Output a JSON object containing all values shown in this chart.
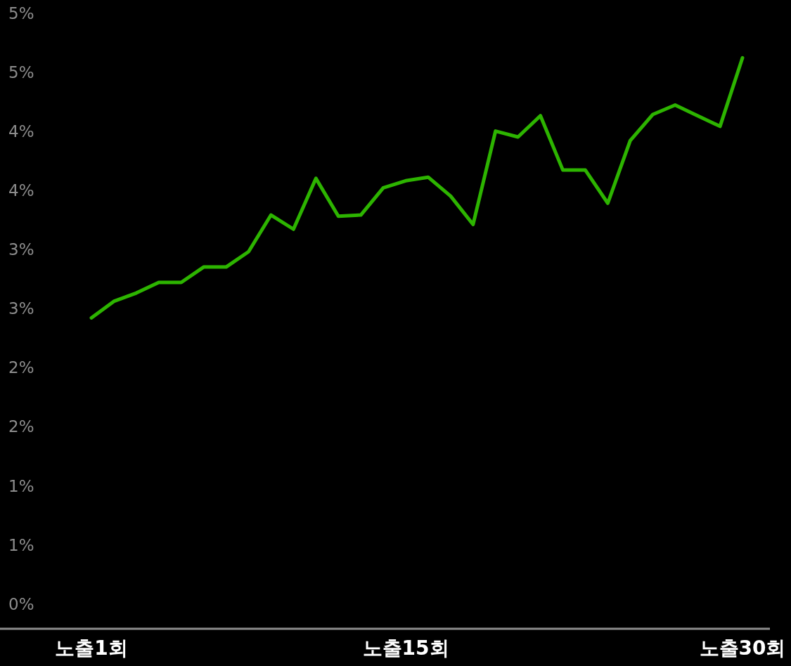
{
  "chart_data": {
    "type": "line",
    "categories": [
      "노출1회",
      null,
      null,
      null,
      null,
      null,
      null,
      null,
      null,
      null,
      null,
      null,
      null,
      null,
      "노출15회",
      null,
      null,
      null,
      null,
      null,
      null,
      null,
      null,
      null,
      null,
      null,
      null,
      null,
      null,
      "노출30회"
    ],
    "series": [
      {
        "color": "#2db400",
        "values": [
          2.43,
          2.57,
          2.64,
          2.73,
          2.73,
          2.86,
          2.86,
          2.99,
          3.3,
          3.18,
          3.61,
          3.29,
          3.3,
          3.53,
          3.59,
          3.62,
          3.46,
          3.22,
          4.01,
          3.96,
          4.14,
          3.68,
          3.68,
          3.4,
          3.93,
          4.15,
          4.23,
          4.14,
          4.05,
          4.63
        ]
      }
    ],
    "ylim": [
      -0.2,
      5.0
    ],
    "yticks": [
      {
        "value": 0,
        "label": "0%"
      },
      {
        "value": 0.5,
        "label": "1%"
      },
      {
        "value": 1,
        "label": "1%"
      },
      {
        "value": 1.5,
        "label": "2%"
      },
      {
        "value": 2,
        "label": "2%"
      },
      {
        "value": 2.5,
        "label": "3%"
      },
      {
        "value": 3,
        "label": "3%"
      },
      {
        "value": 3.5,
        "label": "4%"
      },
      {
        "value": 4,
        "label": "4%"
      },
      {
        "value": 4.5,
        "label": "5%"
      },
      {
        "value": 5,
        "label": "5%"
      }
    ]
  }
}
